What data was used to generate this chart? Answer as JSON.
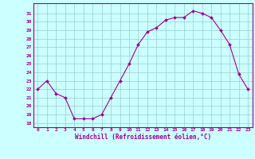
{
  "x": [
    0,
    1,
    2,
    3,
    4,
    5,
    6,
    7,
    8,
    9,
    10,
    11,
    12,
    13,
    14,
    15,
    16,
    17,
    18,
    19,
    20,
    21,
    22,
    23
  ],
  "y": [
    22,
    23,
    21.5,
    21,
    18.5,
    18.5,
    18.5,
    19,
    21,
    23,
    25,
    27.3,
    28.8,
    29.3,
    30.2,
    30.5,
    30.5,
    31.3,
    31,
    30.5,
    29,
    27.3,
    23.8,
    22
  ],
  "line_color": "#990099",
  "marker_color": "#990099",
  "bg_color": "#ccffff",
  "grid_color": "#99cccc",
  "xlabel": "Windchill (Refroidissement éolien,°C)",
  "ylim": [
    17.5,
    32.2
  ],
  "xlim": [
    -0.5,
    23.5
  ],
  "yticks": [
    18,
    19,
    20,
    21,
    22,
    23,
    24,
    25,
    26,
    27,
    28,
    29,
    30,
    31
  ],
  "xticks": [
    0,
    1,
    2,
    3,
    4,
    5,
    6,
    7,
    8,
    9,
    10,
    11,
    12,
    13,
    14,
    15,
    16,
    17,
    18,
    19,
    20,
    21,
    22,
    23
  ],
  "font_color": "#990099",
  "axis_color": "#990099"
}
